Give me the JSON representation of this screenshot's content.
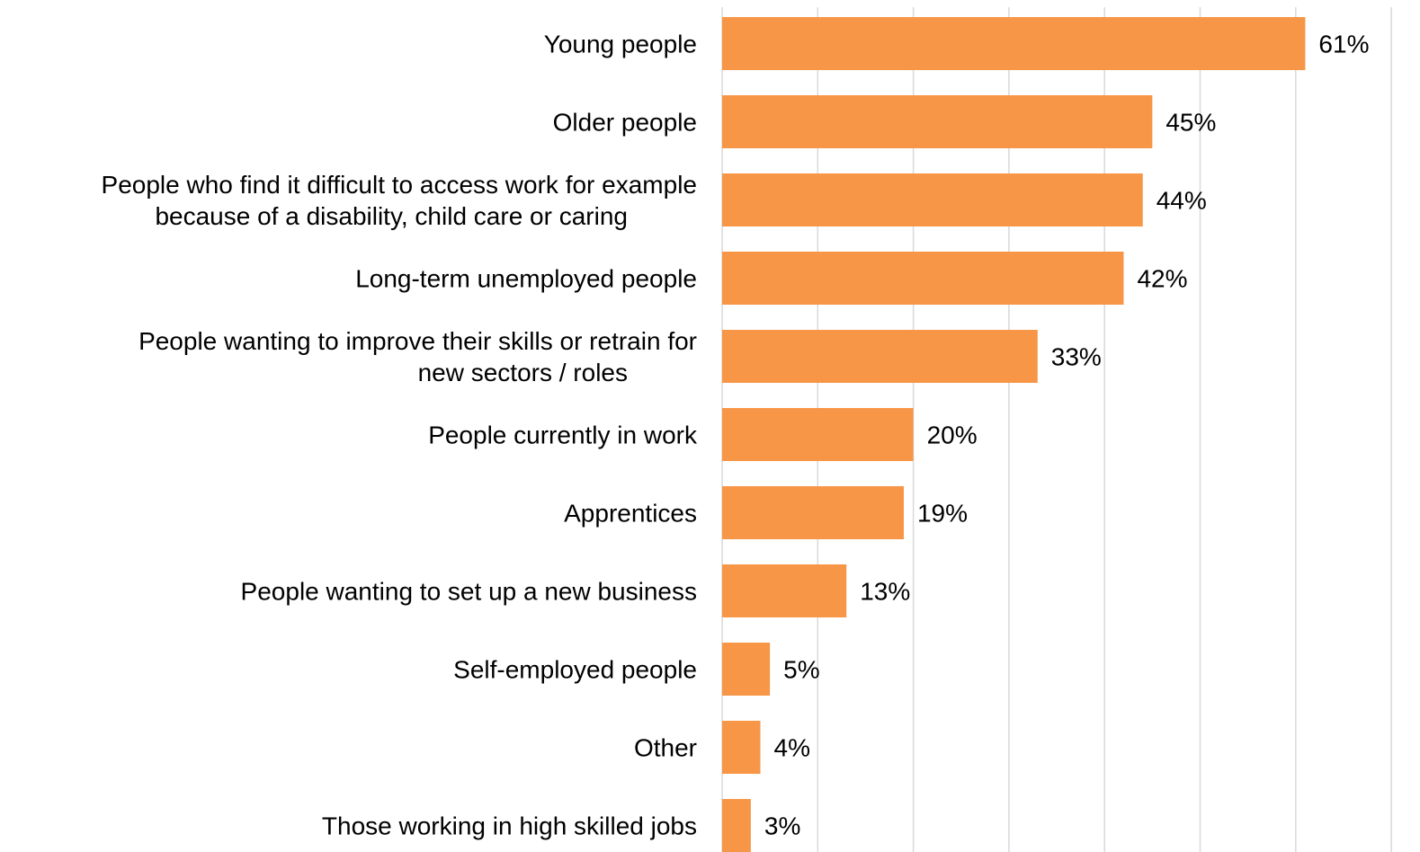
{
  "chart_data": {
    "type": "bar",
    "orientation": "horizontal",
    "title": "",
    "xlabel": "",
    "ylabel": "",
    "categories": [
      [
        "Young people"
      ],
      [
        "Older people"
      ],
      [
        "People who find it difficult to access work for example",
        "because of a disability, child care or caring"
      ],
      [
        "Long-term unemployed people"
      ],
      [
        "People wanting to improve their skills or retrain for",
        "new sectors / roles"
      ],
      [
        "People currently in work"
      ],
      [
        "Apprentices"
      ],
      [
        "People wanting to set up a new business"
      ],
      [
        "Self-employed people"
      ],
      [
        "Other"
      ],
      [
        "Those working in high skilled jobs"
      ]
    ],
    "values": [
      61,
      45,
      44,
      42,
      33,
      20,
      19,
      13,
      5,
      4,
      3
    ],
    "data_labels": [
      "61%",
      "45%",
      "44%",
      "42%",
      "33%",
      "20%",
      "19%",
      "13%",
      "5%",
      "4%",
      "3%"
    ],
    "value_unit": "%",
    "xlim": [
      0,
      70
    ],
    "grid": true,
    "legend": "none",
    "colors": {
      "bar": "#F79646",
      "gridline": "#D9D9D9",
      "text": "#000000"
    }
  }
}
